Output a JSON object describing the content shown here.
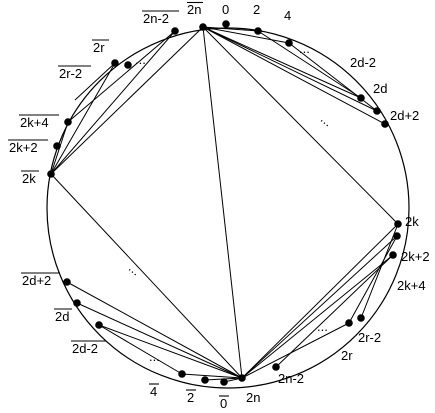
{
  "diagram": {
    "labels": {
      "n2": "2n",
      "zero": "0",
      "two": "2",
      "four": "4",
      "top_dots": "...",
      "d2m2": "2d-2",
      "d2": "2d",
      "d2p2": "2d+2",
      "mid_right_dots": "...",
      "k2": "2k",
      "k2p2": "2k+2",
      "k2p4": "2k+4",
      "low_right_dots": "...",
      "r2m2": "2r-2",
      "r2": "2r",
      "n2m2": "2n-2",
      "n2_bottom": "2n",
      "bar_zero": "0",
      "bar_two": "2",
      "bar_four": "4",
      "bottom_left_dots": "...",
      "bar_d2m2": "2d-2",
      "bar_d2": "2d",
      "bar_d2p2": "2d+2",
      "mid_left_dots": "...",
      "bar_k2": "2k",
      "bar_k2p2": "2k+2",
      "bar_k2p4": "2k+4",
      "bar_r2m2": "2r-2",
      "upper_left_dots": "...",
      "bar_r2": "2r",
      "bar_n2m2": "2n-2",
      "bar_n2": "2n"
    }
  }
}
